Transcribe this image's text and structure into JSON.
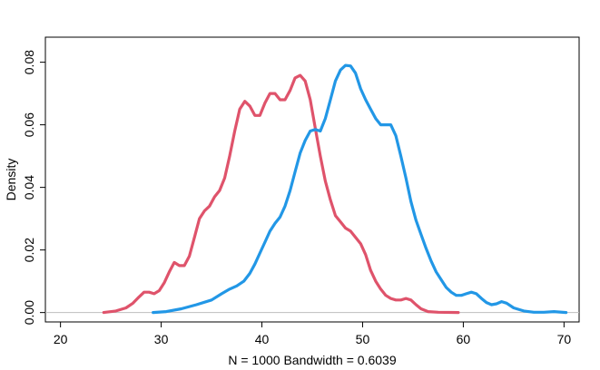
{
  "chart_data": {
    "type": "line",
    "title": "",
    "xlabel": "N = 1000   Bandwidth = 0.6039",
    "ylabel": "Density",
    "xlim": [
      18.5,
      71.5
    ],
    "ylim": [
      -0.003,
      0.088
    ],
    "x_ticks": [
      20,
      30,
      40,
      50,
      60,
      70
    ],
    "x_tick_labels": [
      "20",
      "30",
      "40",
      "50",
      "60",
      "70"
    ],
    "y_ticks": [
      0.0,
      0.02,
      0.04,
      0.06,
      0.08
    ],
    "y_tick_labels": [
      "0.00",
      "0.02",
      "0.04",
      "0.06",
      "0.08"
    ],
    "baseline": 0,
    "grid": false,
    "legend": "none",
    "series": [
      {
        "color": "#DF536B",
        "x": [
          24.3,
          25.5,
          26.5,
          27.2,
          27.8,
          28.3,
          28.8,
          29.3,
          29.8,
          30.3,
          30.8,
          31.3,
          31.8,
          32.3,
          32.8,
          33.3,
          33.8,
          34.3,
          34.8,
          35.3,
          35.8,
          36.3,
          36.8,
          37.3,
          37.8,
          38.3,
          38.8,
          39.3,
          39.8,
          40.3,
          40.8,
          41.3,
          41.8,
          42.3,
          42.8,
          43.3,
          43.8,
          44.3,
          44.8,
          45.3,
          45.8,
          46.3,
          46.8,
          47.3,
          47.8,
          48.3,
          48.8,
          49.3,
          49.8,
          50.3,
          50.8,
          51.3,
          51.8,
          52.3,
          52.8,
          53.3,
          53.8,
          54.3,
          54.8,
          55.3,
          55.8,
          56.5,
          57.5,
          59.5
        ],
        "y": [
          0.0,
          0.0005,
          0.0015,
          0.003,
          0.005,
          0.0065,
          0.0065,
          0.006,
          0.007,
          0.0095,
          0.013,
          0.016,
          0.015,
          0.015,
          0.018,
          0.024,
          0.03,
          0.0325,
          0.034,
          0.037,
          0.039,
          0.043,
          0.05,
          0.058,
          0.065,
          0.0675,
          0.066,
          0.063,
          0.063,
          0.067,
          0.07,
          0.07,
          0.068,
          0.068,
          0.071,
          0.075,
          0.0758,
          0.074,
          0.068,
          0.059,
          0.05,
          0.042,
          0.036,
          0.031,
          0.029,
          0.027,
          0.026,
          0.024,
          0.022,
          0.0185,
          0.0135,
          0.01,
          0.0075,
          0.0055,
          0.0045,
          0.004,
          0.004,
          0.0045,
          0.004,
          0.0025,
          0.0012,
          0.0003,
          0.0001,
          0.0
        ]
      },
      {
        "color": "#2297E6",
        "x": [
          29.2,
          30.5,
          32.0,
          33.5,
          35.0,
          36.0,
          36.8,
          37.5,
          38.2,
          38.8,
          39.3,
          39.8,
          40.3,
          40.8,
          41.3,
          41.8,
          42.3,
          42.8,
          43.3,
          43.8,
          44.3,
          44.8,
          45.3,
          45.8,
          46.3,
          46.8,
          47.3,
          47.8,
          48.3,
          48.8,
          49.3,
          49.8,
          50.3,
          50.8,
          51.3,
          51.8,
          52.3,
          52.8,
          53.3,
          53.8,
          54.3,
          54.8,
          55.3,
          55.8,
          56.3,
          56.8,
          57.3,
          57.8,
          58.3,
          58.8,
          59.3,
          59.8,
          60.3,
          60.8,
          61.3,
          61.8,
          62.3,
          62.8,
          63.3,
          63.8,
          64.3,
          65.0,
          66.0,
          67.0,
          68.0,
          69.0,
          70.2
        ],
        "y": [
          0.0,
          0.0003,
          0.0012,
          0.0025,
          0.004,
          0.006,
          0.0075,
          0.0085,
          0.01,
          0.0125,
          0.0155,
          0.019,
          0.0225,
          0.026,
          0.0285,
          0.0305,
          0.034,
          0.039,
          0.045,
          0.051,
          0.055,
          0.058,
          0.0585,
          0.058,
          0.062,
          0.068,
          0.074,
          0.0775,
          0.079,
          0.0788,
          0.0765,
          0.0715,
          0.068,
          0.065,
          0.062,
          0.06,
          0.06,
          0.06,
          0.0565,
          0.05,
          0.043,
          0.0355,
          0.0295,
          0.025,
          0.0205,
          0.0165,
          0.013,
          0.0105,
          0.008,
          0.0065,
          0.0055,
          0.0055,
          0.006,
          0.0065,
          0.006,
          0.0045,
          0.0032,
          0.0025,
          0.0028,
          0.0035,
          0.003,
          0.0015,
          0.0005,
          0.0001,
          0.0001,
          0.0003,
          0.0
        ]
      }
    ]
  }
}
